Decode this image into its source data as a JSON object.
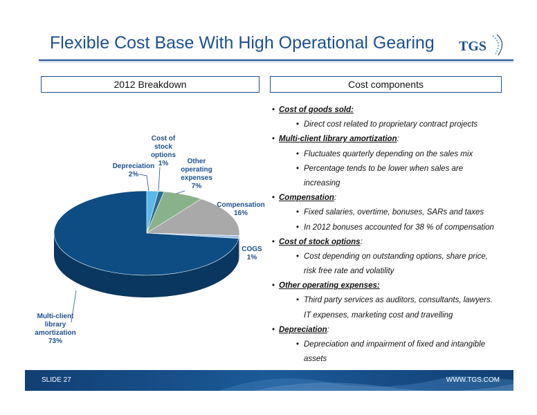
{
  "header": {
    "title": "Flexible Cost Base With High Operational Gearing",
    "logo_text": "TGS"
  },
  "left_box": {
    "label": "2012 Breakdown"
  },
  "right_box": {
    "label": "Cost components"
  },
  "chart_data": {
    "type": "pie",
    "title": "2012 Breakdown",
    "slices": [
      {
        "label": "Depreciation",
        "value": 2,
        "color": "#5bb8ea"
      },
      {
        "label": "Cost of stock options",
        "value": 1,
        "color": "#2f6b8f"
      },
      {
        "label": "Other operating expenses",
        "value": 7,
        "color": "#8ab28a"
      },
      {
        "label": "Compensation",
        "value": 16,
        "color": "#a9a9a9"
      },
      {
        "label": "COGS",
        "value": 1,
        "color": "#9fc3e6"
      },
      {
        "label": "Multi-client library amortization",
        "value": 73,
        "color": "#0e4d84"
      }
    ],
    "labels": {
      "depreciation": [
        "Depreciation",
        "2%"
      ],
      "stock": [
        "Cost of",
        "stock",
        "options",
        "1%"
      ],
      "other": [
        "Other",
        "operating",
        "expenses",
        "7%"
      ],
      "comp": [
        "Compensation",
        "16%"
      ],
      "cogs": [
        "COGS",
        "1%"
      ],
      "mc": [
        "Multi-client",
        "library",
        "amortization",
        "73%"
      ]
    }
  },
  "cost_components": {
    "cogs": {
      "heading": "Cost of goods sold:",
      "items": [
        "Direct cost related to proprietary contract projects"
      ]
    },
    "mcla": {
      "heading": "Multi-client library amortization",
      "suffix": ":",
      "items": [
        "Fluctuates quarterly depending on the sales mix",
        "Percentage tends to be lower when sales are",
        "increasing"
      ]
    },
    "comp": {
      "heading": "Compensation",
      "suffix": ":",
      "items": [
        "Fixed salaries, overtime, bonuses, SARs and  taxes",
        "In 2012 bonuses accounted for 38 % of compensation"
      ]
    },
    "stock": {
      "heading": "Cost of stock options",
      "suffix": ":",
      "items": [
        "Cost depending on outstanding options, share price,",
        "risk free rate and volatility"
      ]
    },
    "other": {
      "heading": "Other operating expenses:",
      "items": [
        "Third party services as auditors, consultants, lawyers.",
        "IT expenses, marketing cost and travelling"
      ]
    },
    "dep": {
      "heading": "Depreciation",
      "suffix": ":",
      "items": [
        "Depreciation  and impairment of fixed and intangible",
        "assets"
      ]
    }
  },
  "footer": {
    "slide": "SLIDE 27",
    "url": "WWW.TGS.COM"
  },
  "colors": {
    "brand": "#1d4f91",
    "footer_dark": "#123f73",
    "footer_light": "#3d79b4"
  }
}
